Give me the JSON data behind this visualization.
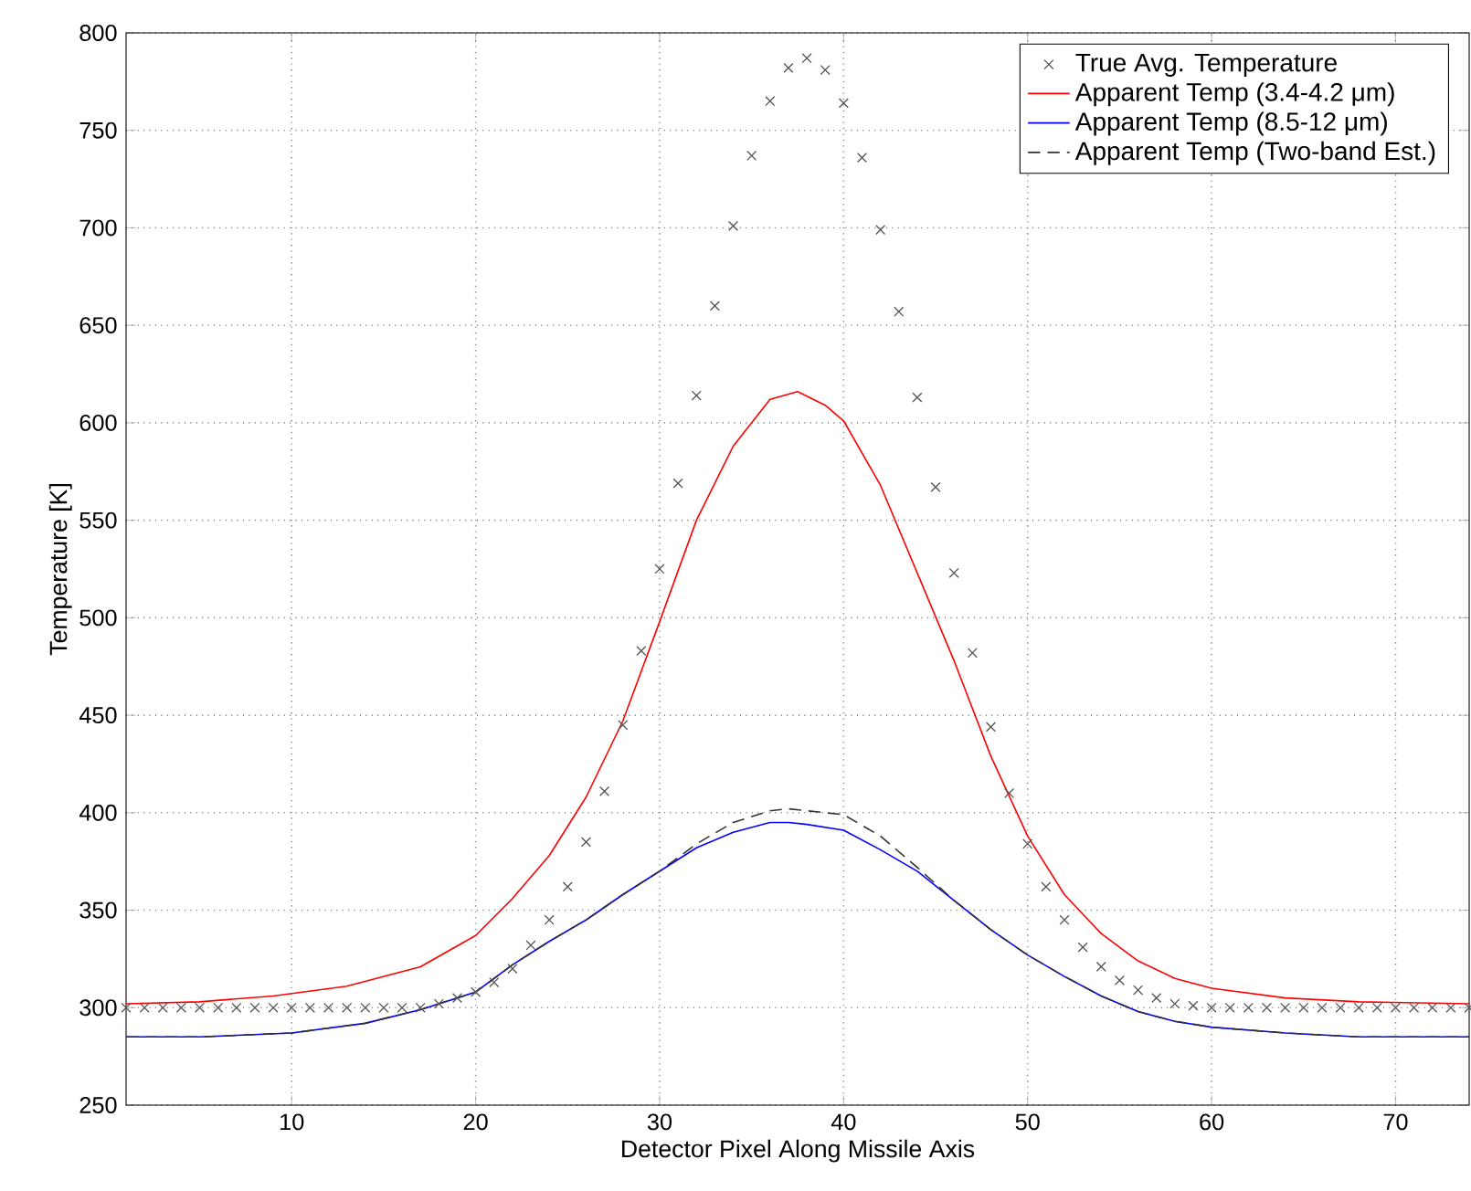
{
  "chart_data": {
    "type": "line",
    "xlabel": "Detector Pixel Along Missile Axis",
    "ylabel": "Temperature [K]",
    "xlim": [
      1,
      74
    ],
    "ylim": [
      250,
      800
    ],
    "xticks": [
      10,
      20,
      30,
      40,
      50,
      60,
      70
    ],
    "yticks": [
      250,
      300,
      350,
      400,
      450,
      500,
      550,
      600,
      650,
      700,
      750,
      800
    ],
    "grid": true,
    "legend": "top right",
    "series": [
      {
        "name": "True Avg. Temperature",
        "type": "scatter",
        "marker": "cross",
        "color": "#555555",
        "x": [
          1,
          2,
          3,
          4,
          5,
          6,
          7,
          8,
          9,
          10,
          11,
          12,
          13,
          14,
          15,
          16,
          17,
          18,
          19,
          20,
          21,
          22,
          23,
          24,
          25,
          26,
          27,
          28,
          29,
          30,
          31,
          32,
          33,
          34,
          35,
          36,
          37,
          38,
          39,
          40,
          41,
          42,
          43,
          44,
          45,
          46,
          47,
          48,
          49,
          50,
          51,
          52,
          53,
          54,
          55,
          56,
          57,
          58,
          59,
          60,
          61,
          62,
          63,
          64,
          65,
          66,
          67,
          68,
          69,
          70,
          71,
          72,
          73,
          74
        ],
        "values": [
          300,
          300,
          300,
          300,
          300,
          300,
          300,
          300,
          300,
          300,
          300,
          300,
          300,
          300,
          300,
          300,
          300,
          302,
          305,
          308,
          313,
          320,
          332,
          345,
          362,
          385,
          411,
          445,
          483,
          525,
          569,
          614,
          660,
          701,
          737,
          765,
          782,
          787,
          781,
          764,
          736,
          699,
          657,
          613,
          567,
          523,
          482,
          444,
          410,
          384,
          362,
          345,
          331,
          321,
          314,
          309,
          305,
          302,
          301,
          300,
          300,
          300,
          300,
          300,
          300,
          300,
          300,
          300,
          300,
          300,
          300,
          300,
          300,
          300
        ]
      },
      {
        "name": "Apparent Temp (3.4-4.2 μm)",
        "line_style": "solid",
        "color": "#ff0000",
        "x": [
          1,
          5,
          9,
          13,
          17,
          20,
          22,
          24,
          26,
          28,
          30,
          32,
          34,
          36,
          37.5,
          39,
          40,
          42,
          44,
          46,
          48,
          50,
          52,
          54,
          56,
          58,
          60,
          64,
          68,
          74
        ],
        "values": [
          302,
          303,
          306,
          311,
          321,
          337,
          356,
          378,
          408,
          447,
          498,
          550,
          588,
          612,
          616,
          609,
          601,
          568,
          523,
          478,
          429,
          388,
          358,
          338,
          324,
          315,
          310,
          305,
          303,
          302
        ]
      },
      {
        "name": "Apparent Temp (8.5-12 μm)",
        "line_style": "solid",
        "color": "#0000ff",
        "x": [
          1,
          5,
          10,
          14,
          17,
          20,
          22,
          24,
          26,
          28,
          30,
          32,
          34,
          36,
          37,
          38,
          40,
          42,
          44,
          46,
          48,
          50,
          52,
          54,
          56,
          58,
          60,
          64,
          68,
          74
        ],
        "values": [
          285,
          285,
          287,
          292,
          299,
          308,
          322,
          334,
          345,
          358,
          370,
          382,
          390,
          395,
          395,
          394,
          391,
          381,
          370,
          355,
          340,
          327,
          316,
          306,
          298,
          293,
          290,
          287,
          285,
          285
        ]
      },
      {
        "name": "Apparent Temp (Two-band Est.)",
        "line_style": "dashed",
        "color": "#333333",
        "x": [
          1,
          5,
          10,
          14,
          17,
          20,
          22,
          24,
          26,
          28,
          30,
          32,
          34,
          36,
          37,
          38,
          40,
          42,
          44,
          46,
          48,
          50,
          52,
          54,
          56,
          58,
          60,
          64,
          68,
          74
        ],
        "values": [
          285,
          285,
          287,
          292,
          299,
          308,
          322,
          334,
          345,
          358,
          370,
          384,
          395,
          401,
          402,
          401,
          399,
          388,
          372,
          355,
          340,
          327,
          316,
          306,
          298,
          293,
          290,
          287,
          285,
          285
        ]
      }
    ]
  }
}
